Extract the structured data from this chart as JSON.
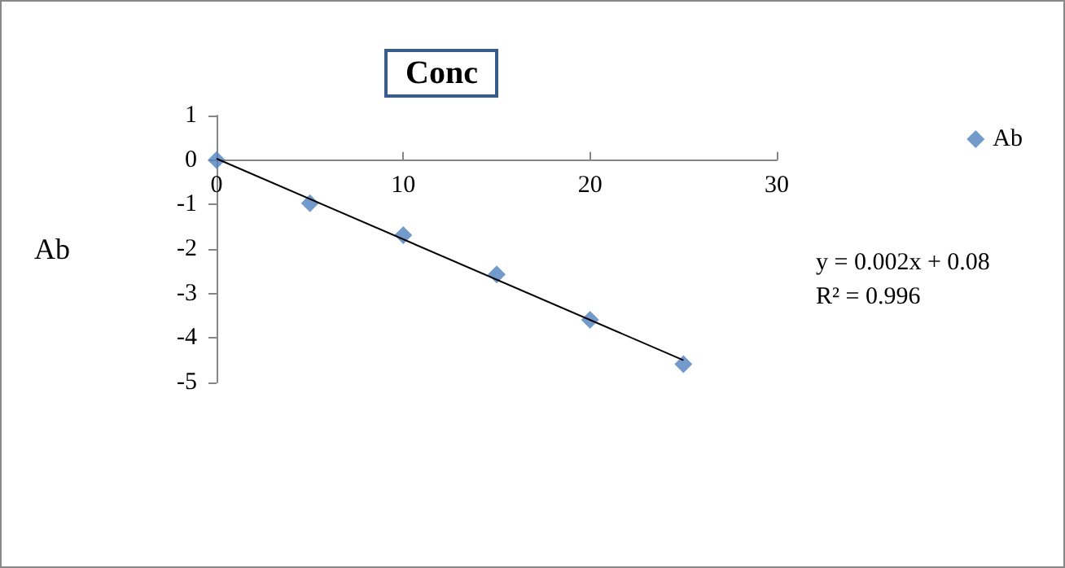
{
  "chart_data": {
    "type": "scatter",
    "title": "Conc",
    "ylabel": "Ab",
    "annotations": [
      "y = 0.002x + 0.08",
      "R² = 0.996"
    ],
    "x": [
      0,
      5,
      10,
      15,
      20,
      25
    ],
    "series": [
      {
        "name": "Ab",
        "color": "#4f81bd",
        "values": [
          0,
          -0.97,
          -1.69,
          -2.57,
          -3.59,
          -4.59
        ]
      },
      {
        "type": "line",
        "marker": "none",
        "color": "#000000",
        "x": [
          0,
          25
        ],
        "values": [
          0.03,
          -4.5
        ]
      }
    ],
    "xlim": [
      0,
      30
    ],
    "xticks": [
      0,
      10,
      20,
      30
    ],
    "ylim": [
      -5,
      1
    ],
    "yticks": [
      -5,
      -4,
      -3,
      -2,
      -1,
      0,
      1
    ],
    "grid": false,
    "legend": "right",
    "marker": "diamond"
  }
}
